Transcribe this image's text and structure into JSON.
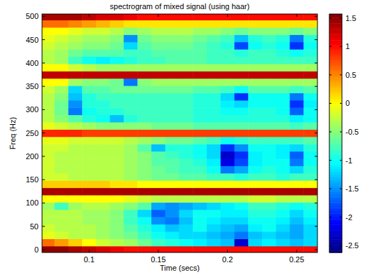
{
  "chart_data": {
    "type": "heatmap",
    "title": "spectrogram of mixed signal (using  haar)",
    "xlabel": "Time (secs)",
    "ylabel": "Freq (Hz)",
    "color": "jet",
    "xlim": [
      0.066,
      0.265
    ],
    "ylim": [
      -6,
      505
    ],
    "xticks": [
      0.1,
      0.15,
      0.2,
      0.25
    ],
    "yticks": [
      0,
      50,
      100,
      150,
      200,
      250,
      300,
      350,
      400,
      450,
      500
    ],
    "x": [
      0.07,
      0.08,
      0.09,
      0.1,
      0.11,
      0.12,
      0.13,
      0.14,
      0.15,
      0.16,
      0.17,
      0.18,
      0.19,
      0.2,
      0.21,
      0.22,
      0.23,
      0.24,
      0.25,
      0.26
    ],
    "y": [
      0,
      15.625,
      31.25,
      46.875,
      62.5,
      78.125,
      93.75,
      109.375,
      125,
      140.625,
      156.25,
      171.875,
      187.5,
      203.125,
      218.75,
      234.375,
      250,
      265.625,
      281.25,
      296.875,
      312.5,
      328.125,
      343.75,
      359.375,
      375,
      390.625,
      406.25,
      421.875,
      437.5,
      453.125,
      468.75,
      484.375,
      500
    ],
    "z": [
      [
        1.5,
        1.5,
        1.4,
        1.3,
        1.2,
        1.1,
        1.0,
        1.0,
        1.0,
        1.0,
        1.0,
        1.0,
        1.0,
        1.0,
        1.0,
        1.0,
        1.0,
        1.0,
        1.0,
        1.0
      ],
      [
        0.6,
        0.4,
        0.2,
        0.0,
        -0.2,
        -0.3,
        -0.4,
        -0.6,
        -0.8,
        -0.9,
        -1.0,
        -1.1,
        -1.2,
        -1.3,
        -2.3,
        -1.2,
        -1.1,
        -1.2,
        -1.3,
        -1.2
      ],
      [
        -0.1,
        -0.2,
        -0.3,
        -0.3,
        -0.4,
        -0.5,
        -0.6,
        -0.8,
        -1.0,
        -1.1,
        -1.2,
        -1.2,
        -1.3,
        -1.4,
        -1.6,
        -1.3,
        -1.2,
        -1.3,
        -1.4,
        -1.2
      ],
      [
        -0.2,
        -0.3,
        -0.3,
        -0.3,
        -0.4,
        -0.5,
        -0.7,
        -0.9,
        -1.1,
        -1.3,
        -1.2,
        -1.0,
        -1.2,
        -1.3,
        -1.4,
        -1.1,
        -1.0,
        -1.2,
        -1.4,
        -1.2
      ],
      [
        -0.3,
        -0.3,
        -0.3,
        -0.4,
        -0.4,
        -0.5,
        -0.8,
        -1.0,
        -1.5,
        -1.6,
        -1.3,
        -1.0,
        -1.1,
        -1.2,
        -1.2,
        -1.0,
        -1.0,
        -1.1,
        -1.3,
        -1.1
      ],
      [
        -0.3,
        -0.3,
        -0.3,
        -0.4,
        -0.4,
        -0.5,
        -0.8,
        -1.2,
        -1.7,
        -1.5,
        -1.2,
        -1.0,
        -1.0,
        -1.1,
        -1.1,
        -0.9,
        -0.9,
        -1.0,
        -1.2,
        -1.0
      ],
      [
        -0.4,
        -0.8,
        -0.4,
        -0.3,
        -0.3,
        -0.4,
        -0.5,
        -0.7,
        -1.4,
        -1.5,
        -1.4,
        -1.3,
        -1.2,
        -1.1,
        -1.0,
        -0.8,
        -0.8,
        -0.9,
        -1.0,
        -0.9
      ],
      [
        0.0,
        0.0,
        0.0,
        0.0,
        0.0,
        0.0,
        -0.1,
        -0.2,
        -0.3,
        -0.3,
        -0.3,
        -0.3,
        -0.3,
        -0.3,
        -0.3,
        -0.2,
        -0.2,
        -0.3,
        -0.3,
        -0.3
      ],
      [
        1.4,
        1.4,
        1.4,
        1.4,
        1.4,
        1.4,
        1.4,
        1.4,
        1.4,
        1.4,
        1.4,
        1.4,
        1.4,
        1.4,
        1.4,
        1.4,
        1.4,
        1.4,
        1.4,
        1.4
      ],
      [
        0.2,
        0.2,
        0.2,
        0.2,
        0.2,
        0.1,
        0.1,
        0.0,
        0.0,
        0.0,
        0.0,
        0.0,
        0.0,
        0.0,
        0.0,
        0.0,
        0.0,
        0.0,
        0.0,
        0.0
      ],
      [
        -0.2,
        -0.2,
        -0.3,
        -0.3,
        -0.3,
        -0.3,
        -0.4,
        -0.5,
        -0.6,
        -0.6,
        -0.7,
        -0.7,
        -0.8,
        -0.8,
        -0.9,
        -0.8,
        -0.8,
        -0.9,
        -0.8,
        -0.8
      ],
      [
        -0.2,
        -0.3,
        -0.3,
        -0.3,
        -0.3,
        -0.3,
        -0.4,
        -0.5,
        -0.6,
        -0.7,
        -0.8,
        -0.8,
        -1.0,
        -1.6,
        -1.4,
        -1.0,
        -0.9,
        -1.0,
        -1.2,
        -0.9
      ],
      [
        -0.2,
        -0.3,
        -0.3,
        -0.3,
        -0.3,
        -0.3,
        -0.4,
        -0.5,
        -0.7,
        -0.7,
        -0.8,
        -0.9,
        -1.1,
        -2.2,
        -1.8,
        -1.1,
        -1.0,
        -1.0,
        -1.6,
        -1.0
      ],
      [
        -0.2,
        -0.3,
        -0.3,
        -0.3,
        -0.3,
        -0.3,
        -0.4,
        -0.5,
        -0.7,
        -0.8,
        -0.9,
        -1.0,
        -1.2,
        -2.3,
        -1.9,
        -1.1,
        -1.0,
        -1.1,
        -1.7,
        -1.0
      ],
      [
        -0.2,
        -0.2,
        -0.3,
        -0.3,
        -0.3,
        -0.3,
        -0.4,
        -0.7,
        -1.3,
        -0.9,
        -0.9,
        -1.0,
        -1.2,
        -1.9,
        -1.5,
        -1.0,
        -1.0,
        -1.1,
        -1.2,
        -0.9
      ],
      [
        -0.1,
        -0.1,
        -0.2,
        -0.2,
        -0.2,
        -0.2,
        -0.3,
        -0.4,
        -0.5,
        -0.6,
        -0.6,
        -0.7,
        -0.8,
        -1.0,
        -0.9,
        -0.8,
        -0.8,
        -0.8,
        -0.8,
        -0.7
      ],
      [
        0.9,
        0.9,
        0.9,
        0.8,
        0.8,
        0.8,
        0.8,
        0.8,
        0.8,
        0.8,
        0.8,
        0.8,
        0.8,
        0.8,
        0.8,
        0.8,
        0.8,
        0.8,
        0.8,
        0.8
      ],
      [
        -0.1,
        -0.2,
        -0.3,
        -0.4,
        -0.5,
        -0.5,
        -0.5,
        -0.5,
        -0.6,
        -0.6,
        -0.6,
        -0.7,
        -0.7,
        -0.7,
        -0.7,
        -0.7,
        -0.7,
        -0.7,
        -0.8,
        -0.7
      ],
      [
        -0.3,
        -0.5,
        -0.7,
        -0.9,
        -1.0,
        -1.3,
        -0.9,
        -0.8,
        -0.8,
        -0.8,
        -0.8,
        -0.9,
        -0.9,
        -0.9,
        -0.9,
        -0.9,
        -0.9,
        -0.9,
        -1.1,
        -1.0
      ],
      [
        -0.3,
        -0.6,
        -1.6,
        -1.0,
        -0.9,
        -0.9,
        -0.8,
        -0.8,
        -0.8,
        -0.8,
        -0.8,
        -0.9,
        -0.9,
        -1.0,
        -1.0,
        -0.9,
        -0.9,
        -1.0,
        -1.7,
        -1.0
      ],
      [
        -0.3,
        -0.6,
        -1.5,
        -0.9,
        -0.9,
        -0.8,
        -0.8,
        -0.8,
        -0.8,
        -0.8,
        -0.8,
        -0.9,
        -0.9,
        -1.1,
        -1.2,
        -1.0,
        -1.0,
        -1.0,
        -1.9,
        -1.1
      ],
      [
        -0.3,
        -0.5,
        -1.3,
        -0.9,
        -0.8,
        -0.8,
        -0.8,
        -0.8,
        -0.8,
        -0.8,
        -0.8,
        -0.9,
        -0.9,
        -1.2,
        -1.9,
        -1.0,
        -1.0,
        -1.0,
        -1.6,
        -1.0
      ],
      [
        -0.2,
        -0.4,
        -1.2,
        -0.7,
        -0.7,
        -0.6,
        -0.6,
        -0.6,
        -0.6,
        -0.6,
        -0.6,
        -0.7,
        -0.7,
        -0.8,
        -1.0,
        -0.7,
        -0.7,
        -0.7,
        -0.8,
        -0.7
      ],
      [
        0.0,
        0.0,
        -0.4,
        -0.5,
        -0.5,
        -0.6,
        -1.6,
        -0.5,
        -0.4,
        -0.4,
        -0.4,
        -0.4,
        -0.4,
        -0.4,
        -0.4,
        -0.4,
        -0.4,
        -0.4,
        -0.4,
        -0.4
      ],
      [
        1.3,
        1.3,
        1.3,
        1.3,
        1.3,
        1.3,
        1.3,
        1.3,
        1.3,
        1.3,
        1.3,
        1.3,
        1.3,
        1.3,
        1.3,
        1.3,
        1.3,
        1.3,
        1.3,
        1.3
      ],
      [
        0.0,
        0.0,
        -0.2,
        -0.3,
        -0.4,
        -0.4,
        -0.4,
        -0.4,
        -0.4,
        -0.4,
        -0.4,
        -0.4,
        -0.4,
        -0.4,
        -0.4,
        -0.4,
        -0.4,
        -0.4,
        -0.4,
        -0.4
      ],
      [
        -0.3,
        -0.4,
        -0.8,
        -1.0,
        -1.1,
        -1.0,
        -0.9,
        -0.8,
        -0.8,
        -0.7,
        -0.7,
        -0.7,
        -0.8,
        -0.8,
        -0.8,
        -0.8,
        -0.8,
        -0.8,
        -0.8,
        -0.8
      ],
      [
        -0.3,
        -0.4,
        -0.6,
        -0.7,
        -0.7,
        -0.7,
        -0.8,
        -0.8,
        -0.7,
        -0.7,
        -0.7,
        -0.7,
        -0.8,
        -0.8,
        -0.9,
        -0.8,
        -0.8,
        -0.9,
        -1.0,
        -0.9
      ],
      [
        -0.2,
        -0.3,
        -0.4,
        -0.5,
        -0.5,
        -0.6,
        -1.2,
        -0.7,
        -0.6,
        -0.6,
        -0.6,
        -0.7,
        -0.8,
        -0.9,
        -1.8,
        -1.0,
        -0.9,
        -1.0,
        -1.9,
        -1.0
      ],
      [
        -0.1,
        -0.2,
        -0.3,
        -0.4,
        -0.4,
        -0.5,
        -1.5,
        -0.6,
        -0.5,
        -0.5,
        -0.5,
        -0.6,
        -0.7,
        -0.8,
        -1.3,
        -0.9,
        -0.8,
        -0.9,
        -1.6,
        -0.9
      ],
      [
        0.0,
        0.0,
        -0.1,
        -0.2,
        -0.2,
        -0.3,
        -0.5,
        -0.4,
        -0.3,
        -0.3,
        -0.3,
        -0.4,
        -0.4,
        -0.5,
        -0.6,
        -0.5,
        -0.5,
        -0.5,
        -0.6,
        -0.5
      ],
      [
        0.6,
        0.6,
        0.5,
        0.4,
        0.3,
        0.2,
        0.1,
        0.1,
        0.1,
        0.1,
        0.1,
        0.1,
        0.1,
        0.1,
        0.1,
        0.1,
        0.1,
        0.1,
        0.1,
        0.1
      ],
      [
        1.4,
        1.4,
        1.4,
        1.3,
        1.2,
        1.2,
        1.1,
        1.0,
        1.0,
        1.0,
        1.0,
        1.0,
        1.0,
        1.0,
        1.0,
        1.0,
        1.0,
        1.0,
        1.0,
        1.0
      ]
    ],
    "colorbar": {
      "range": [
        -2.62,
        1.57
      ],
      "ticks": [
        -2.5,
        -2,
        -1.5,
        -1,
        -0.5,
        0,
        0.5,
        1,
        1.5
      ]
    }
  }
}
